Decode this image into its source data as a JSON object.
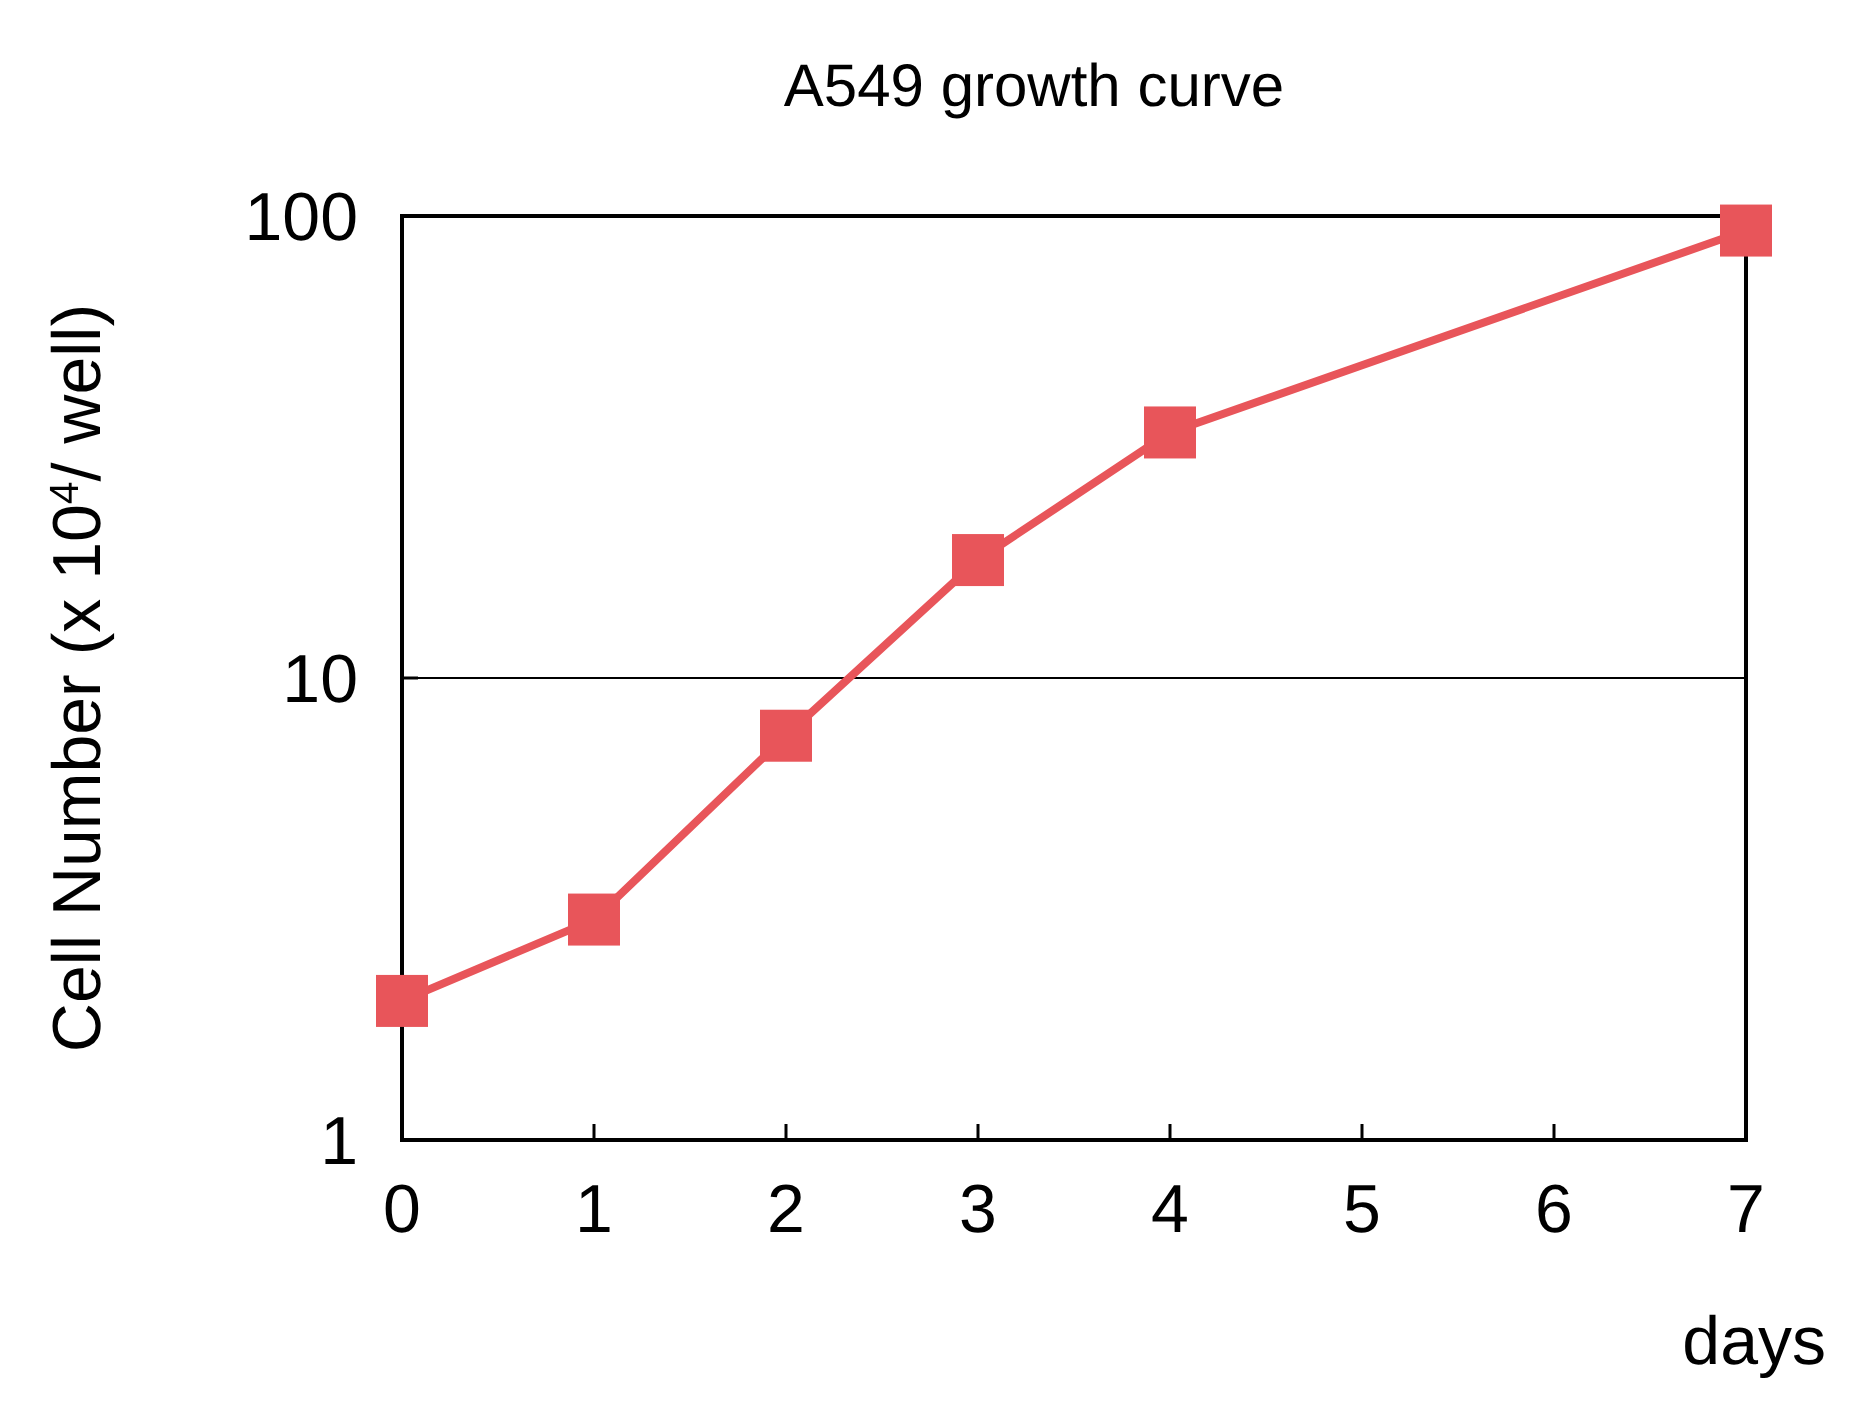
{
  "chart_data": {
    "type": "line",
    "title": "A549 growth curve",
    "xlabel": "days",
    "ylabel": "Cell Number (x 10$^{4}$/ well)",
    "x": [
      0,
      1,
      2,
      3,
      4,
      7
    ],
    "series": [
      {
        "color": "#e8555a",
        "values": [
          2.0,
          3.0,
          7.5,
          18,
          34,
          93
        ]
      }
    ],
    "xlim": [
      0,
      7
    ],
    "xticks": [
      0,
      1,
      2,
      3,
      4,
      5,
      6,
      7
    ],
    "ylim": [
      1,
      100
    ],
    "yticks": [
      1,
      10,
      100
    ],
    "log": "y",
    "grid": "y",
    "marker": "square",
    "line_style": "solid"
  }
}
